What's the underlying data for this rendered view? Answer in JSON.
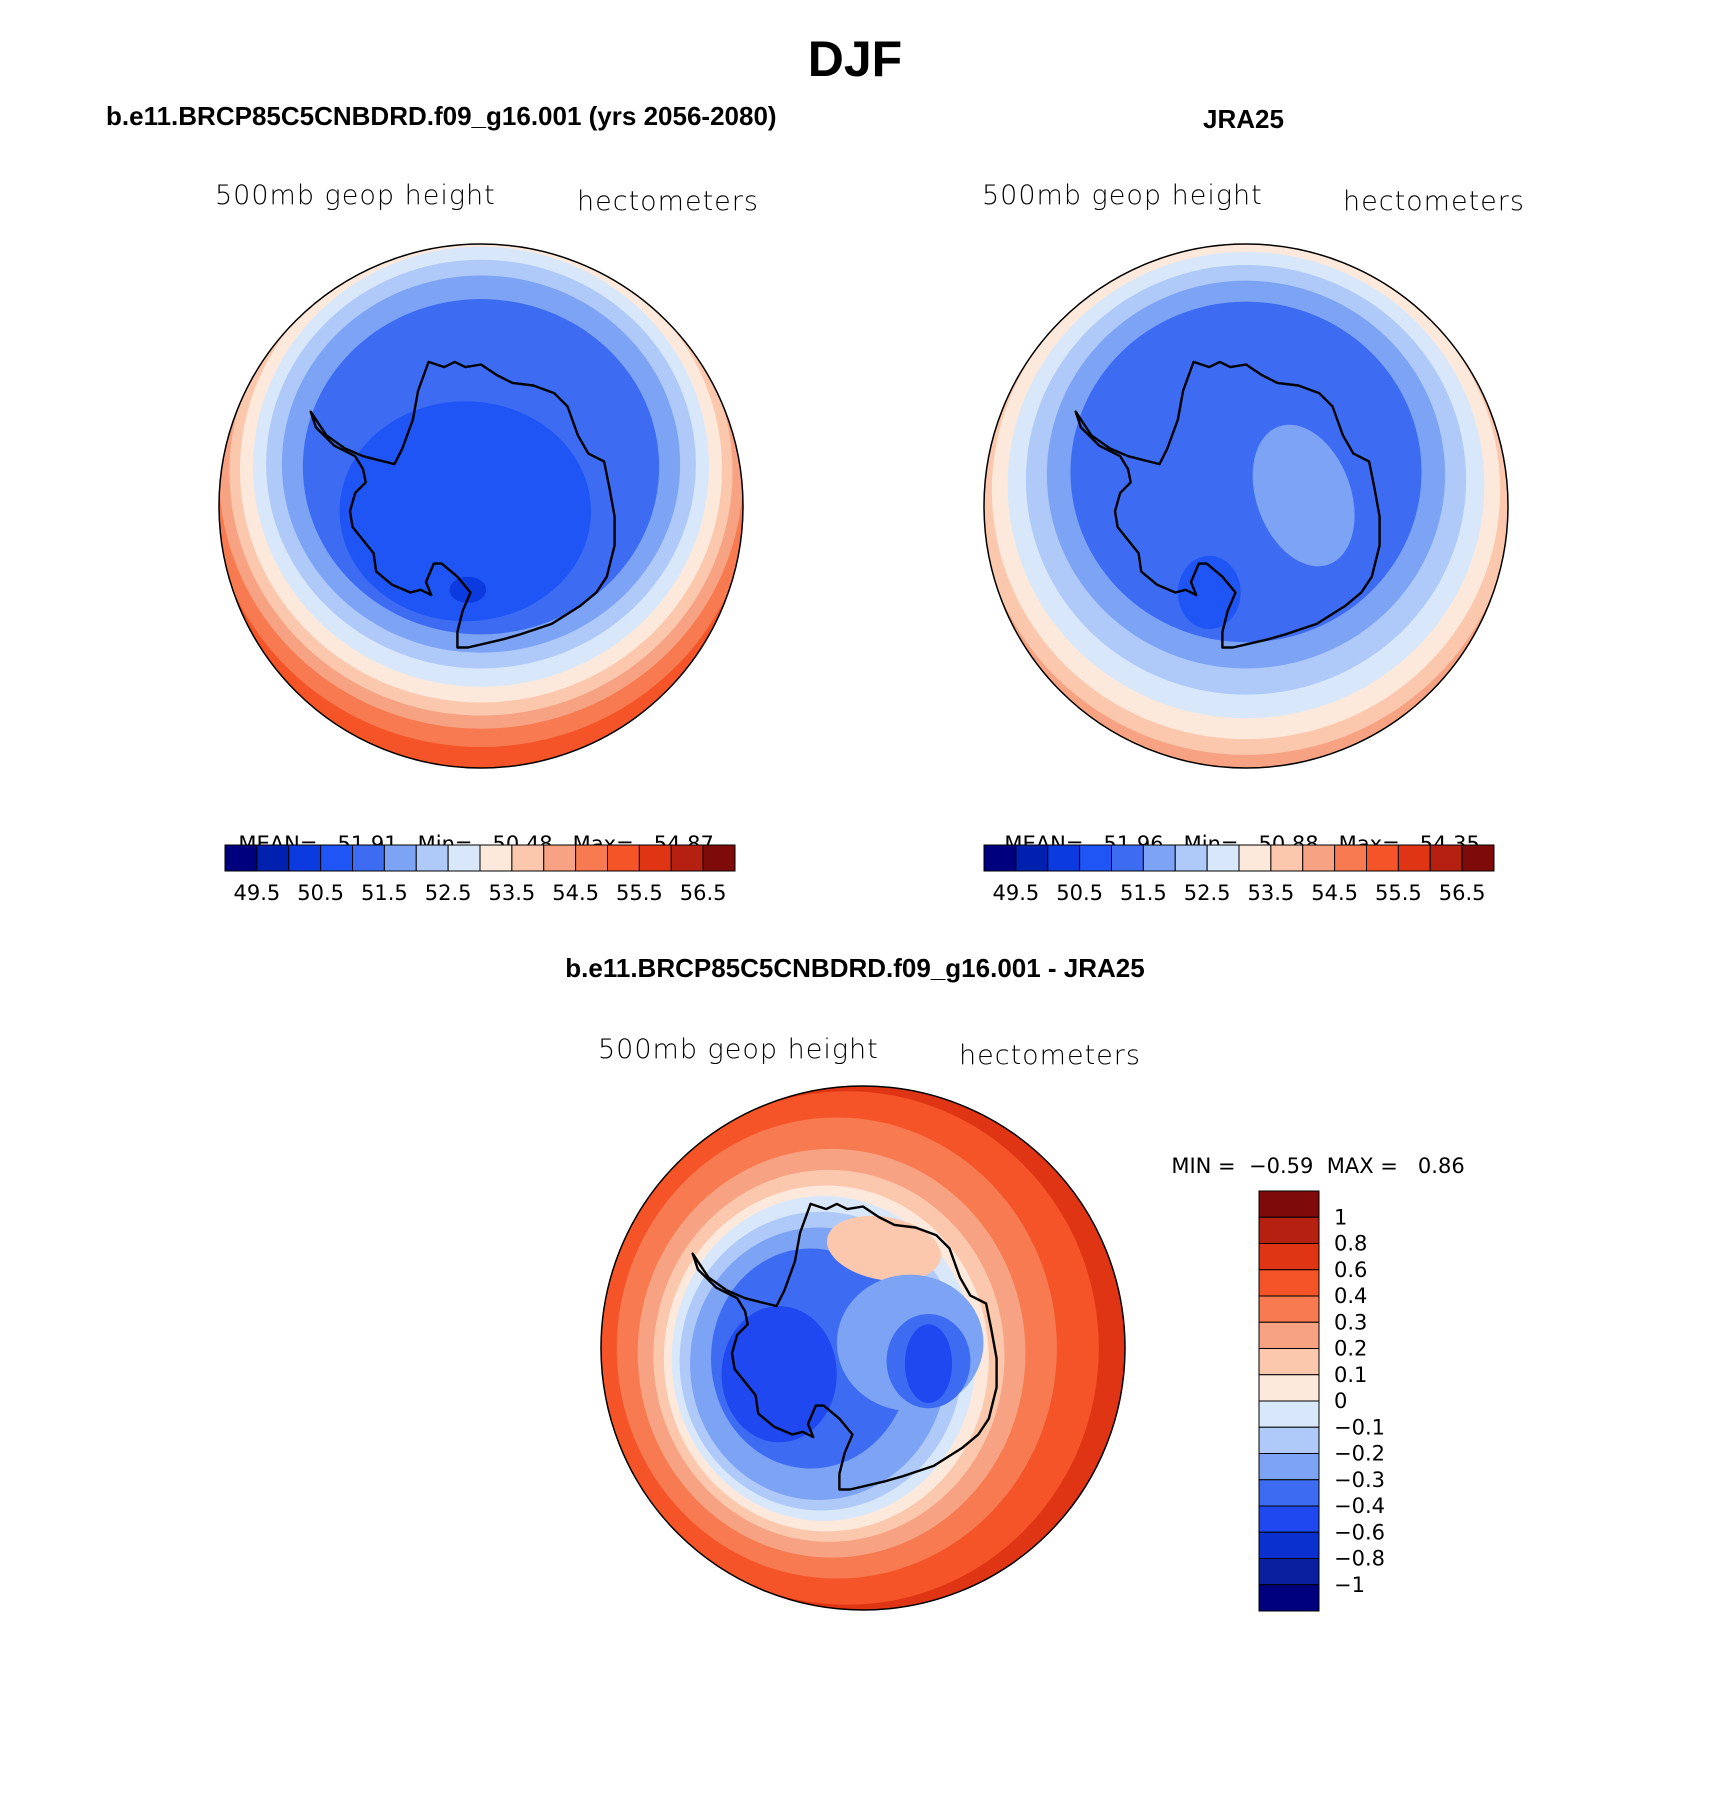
{
  "title": "DJF",
  "colors": {
    "mean_scale": [
      "#00007f",
      "#0020b0",
      "#0a3ae0",
      "#1f55f5",
      "#3d6cf3",
      "#7da3f5",
      "#afc9f8",
      "#d8e8fa",
      "#fde9dc",
      "#fbc8ad",
      "#f7a282",
      "#f77a50",
      "#f55428",
      "#df3514",
      "#b52010",
      "#7f0a0a"
    ],
    "diff_scale": [
      "#00007f",
      "#0a1fa0",
      "#0a30d0",
      "#1f48f0",
      "#3d6cf3",
      "#7da3f5",
      "#afc9f8",
      "#d8e8fa",
      "#fde9dc",
      "#fbc8ad",
      "#f7a282",
      "#f77a50",
      "#f55428",
      "#df3514",
      "#b52010",
      "#7f0a0a"
    ],
    "coast": "#000000"
  },
  "panels": {
    "model": {
      "title": "b.e11.BRCP85C5CNBDRD.f09_g16.001 (yrs 2056-2080)",
      "subtitle_left": "500mb  geop  height",
      "subtitle_right": "hectometers",
      "mean_label": "MEAN=",
      "mean_value": "51.91",
      "min_label": "Min=",
      "min_value": "50.48",
      "max_label": "Max=",
      "max_value": "54.87"
    },
    "obs": {
      "title": "JRA25",
      "subtitle_left": "500mb  geop  height",
      "subtitle_right": "hectometers",
      "mean_label": "MEAN=",
      "mean_value": "51.96",
      "min_label": "Min=",
      "min_value": "50.88",
      "max_label": "Max=",
      "max_value": "54.35"
    },
    "diff": {
      "title": "b.e11.BRCP85C5CNBDRD.f09_g16.001 - JRA25",
      "subtitle_left": "500mb  geop  height",
      "subtitle_right": "hectometers",
      "min_label": "MIN =",
      "min_value": "−0.59",
      "max_label": "MAX =",
      "max_value": "0.86"
    }
  },
  "colorbars": {
    "mean_ticks": [
      "49.5",
      "50.5",
      "51.5",
      "52.5",
      "53.5",
      "54.5",
      "55.5",
      "56.5"
    ],
    "diff_ticks": [
      "1",
      "0.8",
      "0.6",
      "0.4",
      "0.3",
      "0.2",
      "0.1",
      "0",
      "−0.1",
      "−0.2",
      "−0.3",
      "−0.4",
      "−0.6",
      "−0.8",
      "−1"
    ]
  }
}
